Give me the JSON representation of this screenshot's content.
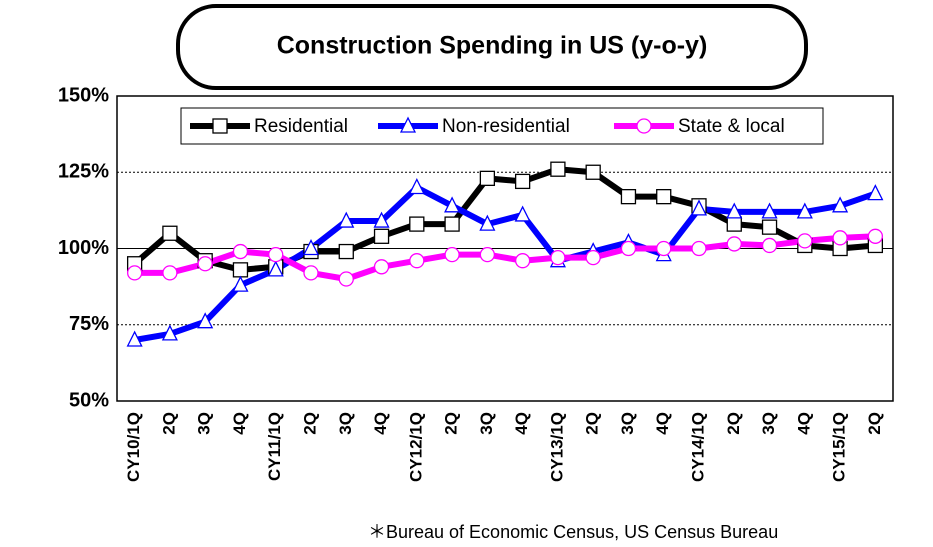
{
  "chart_data": {
    "type": "line",
    "title": "Construction Spending in US (y-o-y)",
    "note": "＊Bureau of Economic Census, US Census Bureau",
    "categories": [
      "CY10/1Q",
      "2Q",
      "3Q",
      "4Q",
      "CY11/1Q",
      "2Q",
      "3Q",
      "4Q",
      "CY12/1Q",
      "2Q",
      "3Q",
      "4Q",
      "CY13/1Q",
      "2Q",
      "3Q",
      "4Q",
      "CY14/1Q",
      "2Q",
      "3Q",
      "4Q",
      "CY15/1Q",
      "2Q"
    ],
    "series": [
      {
        "name": "Residential",
        "color": "#000000",
        "marker": "square",
        "values": [
          95,
          105,
          96,
          93,
          94,
          99,
          99,
          104,
          108,
          108,
          123,
          122,
          126,
          125,
          117,
          117,
          114,
          108,
          107,
          101,
          100,
          101
        ]
      },
      {
        "name": "Non-residential",
        "color": "#0000ff",
        "marker": "triangle",
        "values": [
          70,
          72,
          76,
          88,
          93,
          100,
          109,
          109,
          120,
          114,
          108,
          111,
          96,
          99,
          102,
          98,
          113,
          112,
          112,
          112,
          114,
          118
        ]
      },
      {
        "name": "State & local",
        "color": "#ff00ff",
        "marker": "circle",
        "values": [
          92,
          92,
          95,
          99,
          98,
          92,
          90,
          94,
          96,
          98,
          98,
          96,
          97,
          97,
          100,
          100,
          100,
          101.5,
          101,
          102.5,
          103.5,
          104
        ]
      }
    ],
    "ylim": [
      50,
      150
    ],
    "yticks": [
      {
        "value": 50,
        "label": "50%"
      },
      {
        "value": 75,
        "label": "75%"
      },
      {
        "value": 100,
        "label": "100%"
      },
      {
        "value": 125,
        "label": "125%"
      },
      {
        "value": 150,
        "label": "150%"
      }
    ],
    "grid": true,
    "legend": "top"
  }
}
